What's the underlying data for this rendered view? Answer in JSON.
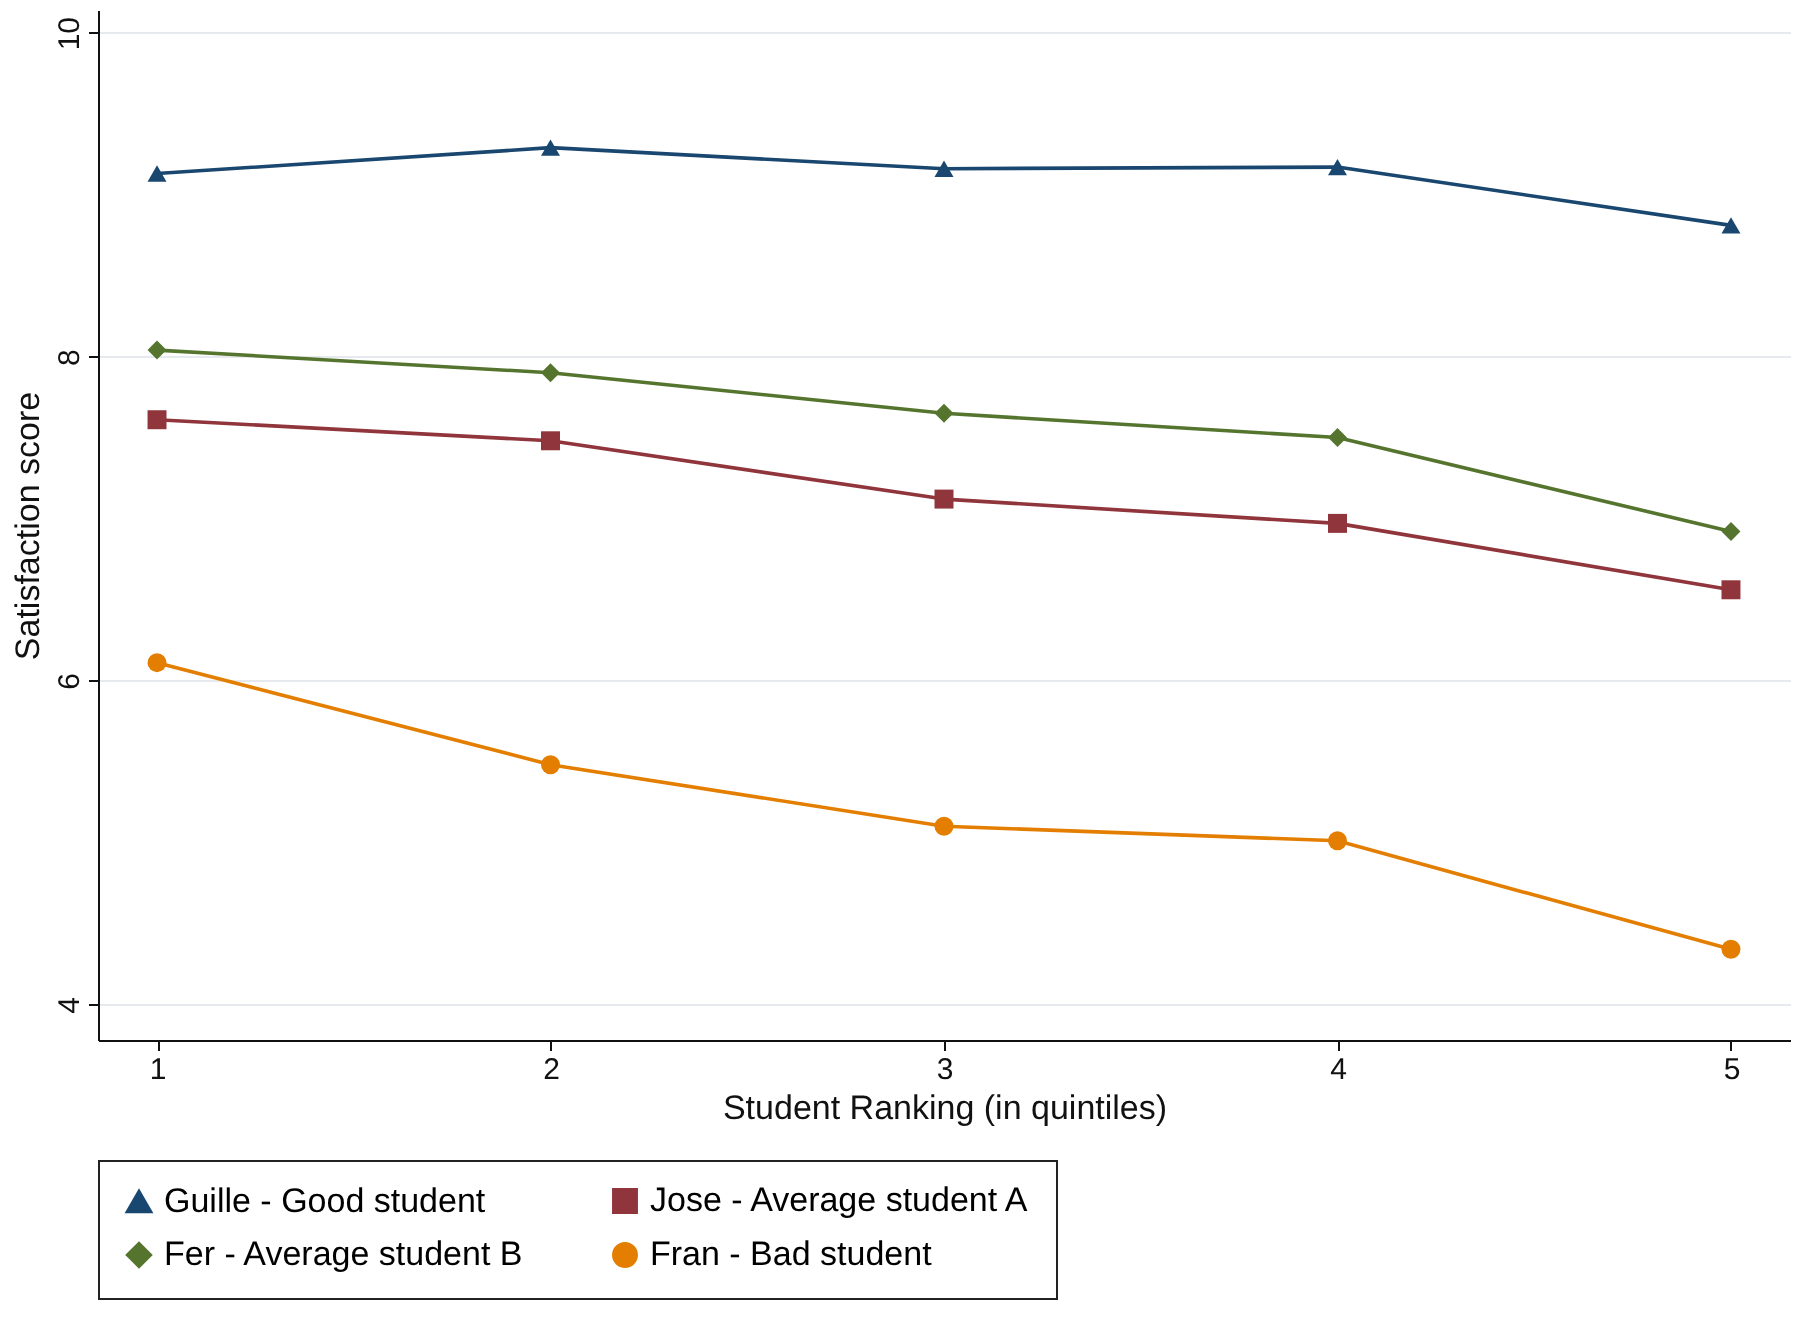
{
  "chart_data": {
    "type": "line",
    "xlabel": "Student Ranking (in quintiles)",
    "ylabel": "Satisfaction score",
    "x": [
      1,
      2,
      3,
      4,
      5
    ],
    "series": [
      {
        "name": "Guille - Good student",
        "color": "#1a476f",
        "marker": "triangle",
        "values": [
          9.13,
          9.29,
          9.16,
          9.17,
          8.81
        ]
      },
      {
        "name": "Jose - Average student A",
        "color": "#90353b",
        "marker": "square",
        "values": [
          7.61,
          7.48,
          7.12,
          6.97,
          6.56
        ]
      },
      {
        "name": "Fer - Average student B",
        "color": "#55752f",
        "marker": "diamond",
        "values": [
          8.04,
          7.9,
          7.65,
          7.5,
          6.92
        ]
      },
      {
        "name": "Fran - Bad student",
        "color": "#e37e00",
        "marker": "circle",
        "values": [
          6.11,
          5.48,
          5.1,
          5.01,
          4.34
        ]
      }
    ],
    "xlim": [
      0.85,
      5.15
    ],
    "xticks": [
      1,
      2,
      3,
      4,
      5
    ],
    "ylim": [
      3.78,
      10.14
    ],
    "yticks": [
      4,
      6,
      8,
      10
    ],
    "grid": "y",
    "legend": "bottom",
    "line_style": "solid"
  }
}
